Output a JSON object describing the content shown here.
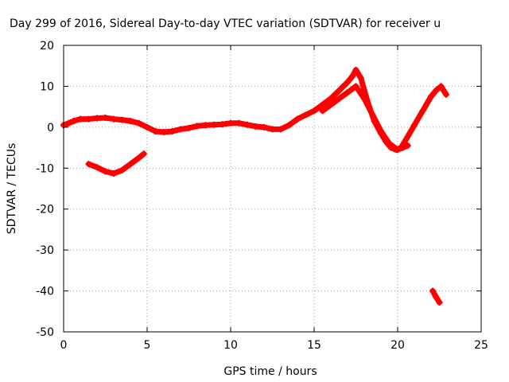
{
  "chart_data": {
    "type": "scatter",
    "title": "Day 299 of 2016, Sidereal Day-to-day VTEC variation (SDTVAR) for receiver u",
    "xlabel": "GPS time / hours",
    "ylabel": "SDTVAR / TECUs",
    "xlim": [
      0,
      25
    ],
    "ylim": [
      -50,
      20
    ],
    "xticks": [
      0,
      5,
      10,
      15,
      20,
      25
    ],
    "yticks": [
      -50,
      -40,
      -30,
      -20,
      -10,
      0,
      10,
      20
    ],
    "grid": true,
    "marker": "plus",
    "color": "#ff0000",
    "series": [
      {
        "name": "main-arc",
        "x": [
          0.0,
          0.3,
          0.6,
          1.0,
          1.5,
          2.0,
          2.5,
          3.0,
          3.5,
          4.0,
          4.5,
          5.0,
          5.5,
          6.0,
          6.5,
          7.0,
          7.5,
          8.0,
          8.5,
          9.0,
          9.5,
          10.0,
          10.5,
          11.0,
          11.5,
          12.0,
          12.5,
          13.0,
          13.5,
          14.0,
          14.5,
          15.0,
          15.5,
          16.0,
          16.5,
          17.0,
          17.3,
          17.5,
          17.8,
          18.0,
          18.3,
          18.6,
          19.0,
          19.3,
          19.6,
          19.9,
          20.2,
          20.5,
          21.0,
          21.5,
          22.0,
          22.3,
          22.6,
          22.9
        ],
        "y": [
          0.5,
          1.0,
          1.5,
          2.0,
          2.0,
          2.2,
          2.3,
          2.0,
          1.8,
          1.5,
          1.0,
          0.0,
          -1.0,
          -1.2,
          -1.0,
          -0.5,
          -0.2,
          0.3,
          0.5,
          0.6,
          0.7,
          1.0,
          1.0,
          0.6,
          0.2,
          0.0,
          -0.5,
          -0.5,
          0.5,
          2.0,
          3.0,
          4.0,
          5.5,
          7.0,
          9.0,
          11.0,
          12.5,
          14.0,
          12.0,
          9.0,
          5.0,
          1.5,
          -1.5,
          -3.5,
          -5.0,
          -5.5,
          -5.0,
          -3.0,
          0.5,
          4.0,
          7.5,
          9.0,
          10.0,
          8.0
        ]
      },
      {
        "name": "lower-branch",
        "x": [
          15.5,
          16.0,
          16.5,
          17.0,
          17.5,
          18.0,
          18.5,
          19.0,
          19.5,
          20.0,
          20.3,
          20.6
        ],
        "y": [
          4.0,
          5.5,
          7.0,
          8.5,
          10.0,
          7.0,
          3.0,
          -1.0,
          -4.0,
          -5.5,
          -5.0,
          -4.5
        ]
      },
      {
        "name": "dip-segment",
        "x": [
          1.5,
          2.0,
          2.5,
          3.0,
          3.5,
          4.0,
          4.5,
          4.8
        ],
        "y": [
          -9.0,
          -9.8,
          -10.8,
          -11.3,
          -10.5,
          -9.0,
          -7.5,
          -6.5
        ]
      },
      {
        "name": "outlier-segment",
        "x": [
          22.1,
          22.3,
          22.5
        ],
        "y": [
          -40.0,
          -41.5,
          -42.8
        ]
      }
    ]
  }
}
